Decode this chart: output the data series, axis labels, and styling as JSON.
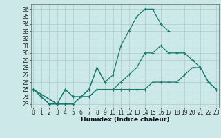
{
  "xlabel": "Humidex (Indice chaleur)",
  "line_color": "#1a7a6e",
  "bg_color": "#cce8e8",
  "grid_color": "#aacccc",
  "yticks": [
    23,
    24,
    25,
    26,
    27,
    28,
    29,
    30,
    31,
    32,
    33,
    34,
    35,
    36
  ],
  "xticks": [
    0,
    1,
    2,
    3,
    4,
    5,
    6,
    7,
    8,
    9,
    10,
    11,
    12,
    13,
    14,
    15,
    16,
    17,
    18,
    19,
    20,
    21,
    22,
    23
  ],
  "tick_fontsize": 5.5,
  "axis_fontsize": 6.5,
  "line1_x": [
    0,
    1,
    2,
    3,
    4,
    5,
    6,
    7,
    8,
    9
  ],
  "line1_y": [
    25,
    24,
    23,
    23,
    25,
    24,
    24,
    25,
    28,
    26
  ],
  "line2_x": [
    0,
    1,
    2,
    3,
    4,
    5,
    6,
    7,
    8,
    9,
    10,
    11,
    12,
    13,
    14,
    15,
    16,
    17
  ],
  "line2_y": [
    25,
    24,
    23,
    23,
    25,
    24,
    24,
    25,
    28,
    26,
    27,
    31,
    33,
    35,
    36,
    36,
    34,
    33
  ],
  "line3_x": [
    0,
    3,
    4,
    5,
    6,
    7,
    8,
    10,
    11,
    12,
    13,
    14,
    15,
    16,
    17,
    18,
    19,
    20,
    21,
    22,
    23
  ],
  "line3_y": [
    25,
    23,
    23,
    23,
    24,
    24,
    25,
    25,
    26,
    27,
    28,
    30,
    30,
    31,
    30,
    30,
    30,
    29,
    28,
    26,
    25
  ],
  "line4_x": [
    0,
    3,
    4,
    5,
    6,
    7,
    8,
    10,
    11,
    12,
    13,
    14,
    15,
    16,
    17,
    18,
    19,
    20,
    21,
    22,
    23
  ],
  "line4_y": [
    25,
    23,
    23,
    23,
    24,
    24,
    25,
    25,
    25,
    25,
    25,
    25,
    26,
    26,
    26,
    26,
    27,
    28,
    28,
    26,
    25
  ]
}
